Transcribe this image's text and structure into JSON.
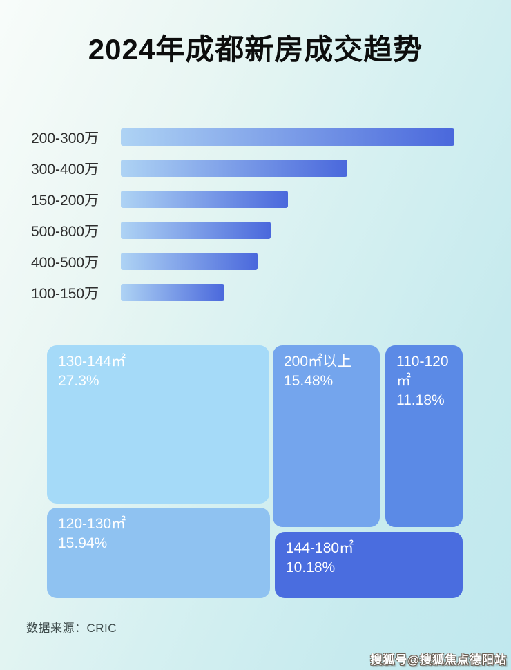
{
  "title": "2024年成都新房成交趋势",
  "colors": {
    "bar_gradient_start": "#aed3f4",
    "bar_gradient_end": "#4a68dc",
    "background_start": "#f8fcfa",
    "background_end": "#c0e8ee",
    "bar_label": "#2e2e2e",
    "title_text": "#0d0d0d",
    "tile_text": "#ffffff"
  },
  "chart_data": [
    {
      "type": "bar",
      "orientation": "horizontal",
      "title": "",
      "xlabel": "",
      "ylabel": "",
      "grid": false,
      "legend": false,
      "categories": [
        "200-300万",
        "300-400万",
        "150-200万",
        "500-800万",
        "400-500万",
        "100-150万"
      ],
      "values": [
        100,
        68,
        50,
        45,
        41,
        31
      ],
      "value_note": "no numeric axis shown; values estimated as percent of longest bar"
    },
    {
      "type": "treemap",
      "title": "",
      "legend": false,
      "items": [
        {
          "label": "130-144㎡",
          "percent": "27.3%",
          "value": 27.3,
          "color": "#a5daf8"
        },
        {
          "label": "120-130㎡",
          "percent": "15.94%",
          "value": 15.94,
          "color": "#8fc2f1"
        },
        {
          "label": "200㎡以上",
          "percent": "15.48%",
          "value": 15.48,
          "color": "#74a5ed"
        },
        {
          "label": "110-120㎡",
          "percent": "11.18%",
          "value": 11.18,
          "color": "#5b8ae6"
        },
        {
          "label": "144-180㎡",
          "percent": "10.18%",
          "value": 10.18,
          "color": "#4a6ddf"
        }
      ]
    }
  ],
  "footer": {
    "source": "数据来源：CRIC"
  },
  "watermark": "搜狐号@搜狐焦点德阳站"
}
